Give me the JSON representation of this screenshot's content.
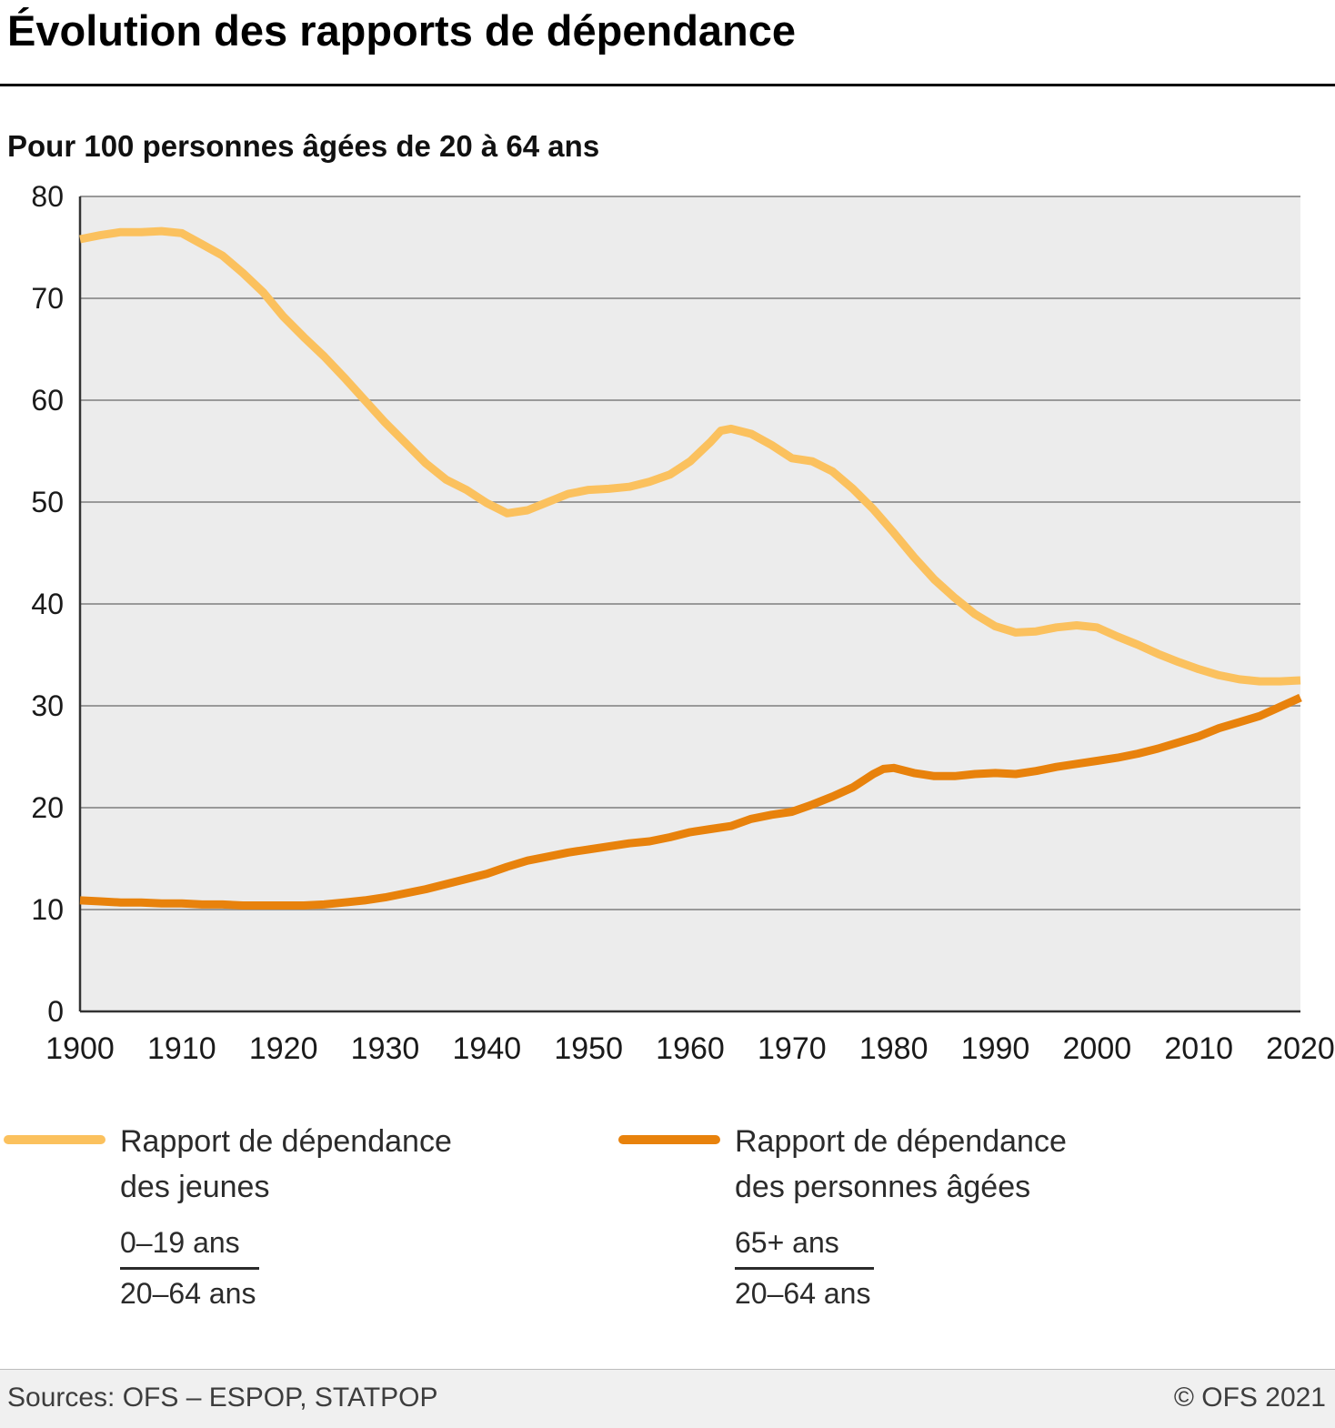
{
  "chart_data": {
    "type": "line",
    "title": "Évolution des rapports de dépendance",
    "subtitle": "Pour 100 personnes âgées de 20 à 64 ans",
    "xlim": [
      1900,
      2020
    ],
    "ylim": [
      0,
      80
    ],
    "xticks": [
      1900,
      1910,
      1920,
      1930,
      1940,
      1950,
      1960,
      1970,
      1980,
      1990,
      2000,
      2010,
      2020
    ],
    "yticks": [
      0,
      10,
      20,
      30,
      40,
      50,
      60,
      70,
      80
    ],
    "grid": "horizontal",
    "legend_position": "bottom",
    "plot_bg": "#ececec",
    "grid_color": "#999999",
    "axis_color": "#333333",
    "series": [
      {
        "name": "Rapport de dépendance des jeunes",
        "color": "#FBC15E",
        "x": [
          1900,
          1902,
          1904,
          1906,
          1908,
          1910,
          1912,
          1914,
          1916,
          1918,
          1920,
          1922,
          1924,
          1926,
          1928,
          1930,
          1932,
          1934,
          1936,
          1938,
          1940,
          1942,
          1944,
          1946,
          1948,
          1950,
          1952,
          1954,
          1956,
          1958,
          1960,
          1962,
          1963,
          1964,
          1966,
          1968,
          1970,
          1972,
          1974,
          1976,
          1978,
          1980,
          1982,
          1984,
          1986,
          1988,
          1990,
          1992,
          1994,
          1996,
          1998,
          2000,
          2002,
          2004,
          2006,
          2008,
          2010,
          2012,
          2014,
          2016,
          2018,
          2020
        ],
        "values": [
          75.8,
          76.2,
          76.5,
          76.5,
          76.6,
          76.4,
          75.3,
          74.2,
          72.5,
          70.6,
          68.2,
          66.2,
          64.3,
          62.2,
          60.0,
          57.8,
          55.8,
          53.8,
          52.2,
          51.2,
          49.9,
          48.9,
          49.2,
          50.0,
          50.8,
          51.2,
          51.3,
          51.5,
          52.0,
          52.7,
          54.0,
          55.9,
          57.0,
          57.2,
          56.7,
          55.6,
          54.3,
          54.0,
          53.0,
          51.3,
          49.3,
          47.0,
          44.6,
          42.4,
          40.6,
          39.0,
          37.8,
          37.2,
          37.3,
          37.7,
          37.9,
          37.7,
          36.8,
          36.0,
          35.1,
          34.3,
          33.6,
          33.0,
          32.6,
          32.4,
          32.4,
          32.5
        ]
      },
      {
        "name": "Rapport de dépendance des personnes âgées",
        "color": "#E8820C",
        "x": [
          1900,
          1902,
          1904,
          1906,
          1908,
          1910,
          1912,
          1914,
          1916,
          1918,
          1920,
          1922,
          1924,
          1926,
          1928,
          1930,
          1932,
          1934,
          1936,
          1938,
          1940,
          1942,
          1944,
          1946,
          1948,
          1950,
          1952,
          1954,
          1956,
          1958,
          1960,
          1962,
          1964,
          1966,
          1968,
          1970,
          1972,
          1974,
          1976,
          1978,
          1979,
          1980,
          1982,
          1984,
          1986,
          1988,
          1990,
          1992,
          1994,
          1996,
          1998,
          2000,
          2002,
          2004,
          2006,
          2008,
          2010,
          2012,
          2014,
          2016,
          2018,
          2020
        ],
        "values": [
          10.9,
          10.8,
          10.7,
          10.7,
          10.6,
          10.6,
          10.5,
          10.5,
          10.4,
          10.4,
          10.4,
          10.4,
          10.5,
          10.7,
          10.9,
          11.2,
          11.6,
          12.0,
          12.5,
          13.0,
          13.5,
          14.2,
          14.8,
          15.2,
          15.6,
          15.9,
          16.2,
          16.5,
          16.7,
          17.1,
          17.6,
          17.9,
          18.2,
          18.9,
          19.3,
          19.6,
          20.3,
          21.1,
          22.0,
          23.3,
          23.8,
          23.9,
          23.4,
          23.1,
          23.1,
          23.3,
          23.4,
          23.3,
          23.6,
          24.0,
          24.3,
          24.6,
          24.9,
          25.3,
          25.8,
          26.4,
          27.0,
          27.8,
          28.4,
          29.0,
          29.9,
          30.8
        ]
      }
    ]
  },
  "legend": {
    "items": [
      {
        "label_line1": "Rapport de dépendance",
        "label_line2": "des jeunes",
        "numerator": "0–19 ans",
        "denominator": "20–64 ans",
        "color": "#FBC15E"
      },
      {
        "label_line1": "Rapport de dépendance",
        "label_line2": "des personnes âgées",
        "numerator": "65+ ans",
        "denominator": "20–64 ans",
        "color": "#E8820C"
      }
    ]
  },
  "footer": {
    "sources": "Sources: OFS – ESPOP, STATPOP",
    "copyright": "© OFS 2021"
  }
}
